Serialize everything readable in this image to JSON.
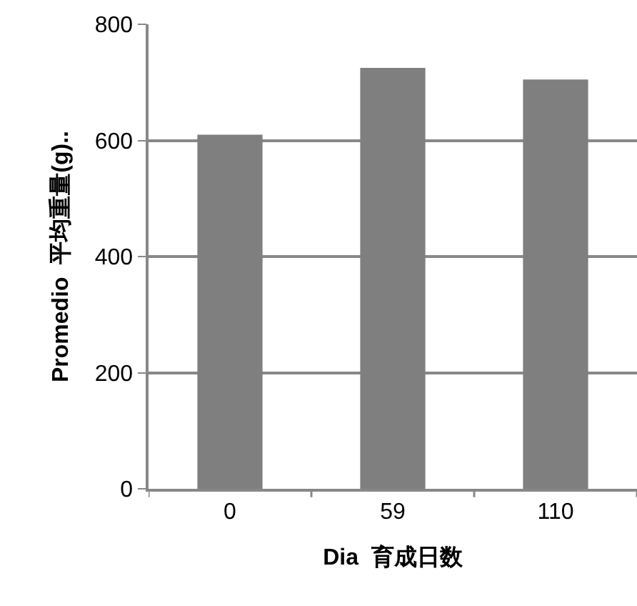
{
  "chart_data": {
    "type": "bar",
    "xlabel": "Dia  育成日数",
    "ylabel": "Promedio  平均重量(g)..",
    "categories": [
      "0",
      "59",
      "110"
    ],
    "values": [
      610,
      725,
      705
    ],
    "color": "#7f7f7f",
    "ylim": [
      0,
      800
    ],
    "yticks": [
      0,
      200,
      400,
      600,
      800
    ],
    "grid": "y",
    "legend": false
  }
}
